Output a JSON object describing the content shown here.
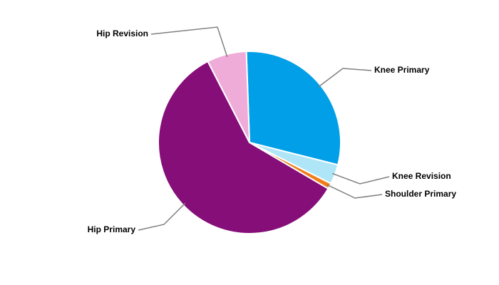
{
  "chart_data": {
    "type": "pie",
    "categories": [
      "Knee Primary",
      "Knee Revision",
      "Shoulder Primary",
      "Hip Primary",
      "Hip Revision"
    ],
    "values": [
      29.5,
      3.5,
      1,
      59,
      7
    ],
    "colors": [
      "#009fe8",
      "#aee6f8",
      "#f07d18",
      "#850e78",
      "#f0acd9"
    ]
  }
}
